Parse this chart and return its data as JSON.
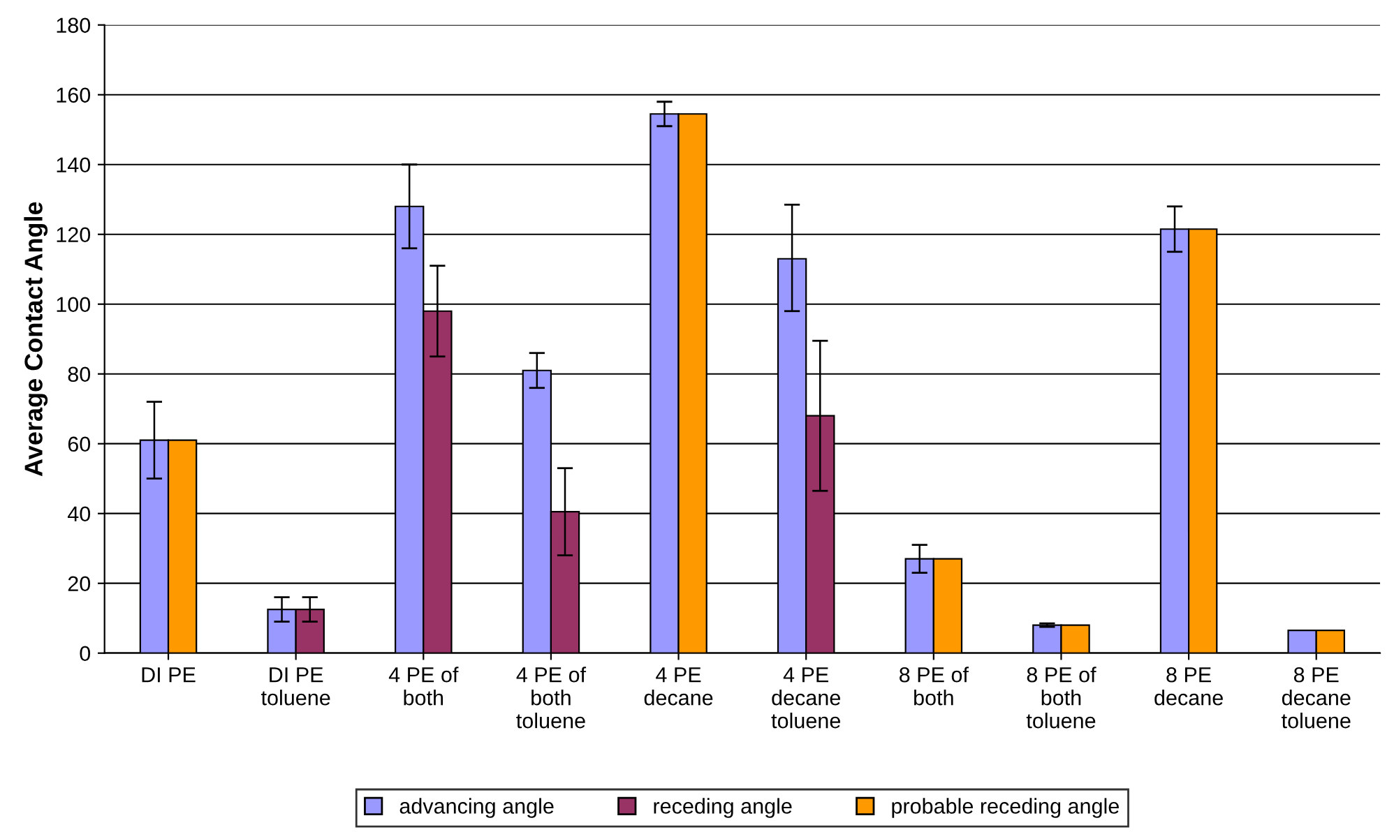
{
  "chart_data": {
    "type": "bar",
    "ylabel": "Average Contact Angle",
    "categories": [
      "DI PE",
      "DI PE\ntoluene",
      "4 PE of\nboth",
      "4 PE of\nboth\ntoluene",
      "4 PE\ndecane",
      "4 PE\ndecane\ntoluene",
      "8 PE of\nboth",
      "8 PE of\nboth\ntoluene",
      "8 PE\ndecane",
      "8 PE\ndecane\ntoluene"
    ],
    "series": [
      {
        "name": "advancing angle",
        "color": "#9999ff",
        "values": [
          61,
          12.5,
          128,
          81,
          154.5,
          113,
          27,
          8,
          121.5,
          6.5
        ],
        "errors": [
          [
            50,
            72
          ],
          [
            9,
            16
          ],
          [
            116,
            140
          ],
          [
            76,
            86
          ],
          [
            151,
            158
          ],
          [
            98,
            128.5
          ],
          [
            23,
            31
          ],
          [
            7.5,
            8.5
          ],
          [
            115,
            128
          ],
          null
        ]
      },
      {
        "name": "receding angle",
        "color": "#993366",
        "values": [
          null,
          12.5,
          98,
          40.5,
          null,
          68,
          null,
          null,
          null,
          null
        ],
        "errors": [
          null,
          [
            9,
            16
          ],
          [
            85,
            111
          ],
          [
            28,
            53
          ],
          null,
          [
            46.5,
            89.5
          ],
          null,
          null,
          null,
          null
        ]
      },
      {
        "name": "probable receding angle",
        "color": "#ff9900",
        "values": [
          61,
          null,
          null,
          null,
          154.5,
          null,
          27,
          8,
          121.5,
          6.5
        ]
      }
    ],
    "ylim": [
      0,
      180
    ],
    "yticks": [
      0,
      20,
      40,
      60,
      80,
      100,
      120,
      140,
      160,
      180
    ],
    "grid": "y",
    "legend": "bottom"
  }
}
